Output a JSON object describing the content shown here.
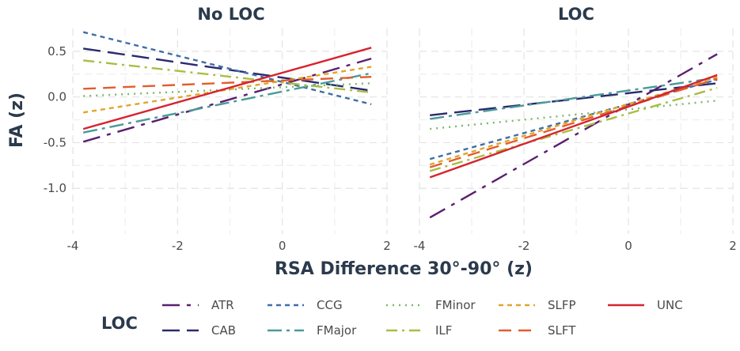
{
  "chart_data": {
    "type": "line",
    "facets": [
      "No LOC",
      "LOC"
    ],
    "xlabel": "RSA Difference 30°-90° (z)",
    "ylabel": "FA (z)",
    "xlim": [
      -4,
      2
    ],
    "ylim": [
      -1.5,
      0.75
    ],
    "xticks": [
      -4,
      -2,
      0,
      2
    ],
    "xtick_labels": [
      "-4",
      "-2",
      "0",
      "2"
    ],
    "yticks": [
      -1.0,
      -0.5,
      0.0,
      0.5
    ],
    "ytick_labels": [
      "-1.0",
      "-0.5",
      "0.0",
      "0.5"
    ],
    "legend_title": "LOC",
    "legend_position": "bottom",
    "series": [
      {
        "name": "ATR",
        "color": "#5b1f6e",
        "dash": "22 9 5 9",
        "panels": [
          {
            "x": [
              -3.8,
              1.7
            ],
            "y": [
              -0.49,
              0.42
            ]
          },
          {
            "x": [
              -3.8,
              1.7
            ],
            "y": [
              -1.32,
              0.47
            ]
          }
        ]
      },
      {
        "name": "CAB",
        "color": "#2a2a6e",
        "dash": "22 9",
        "panels": [
          {
            "x": [
              -3.8,
              1.7
            ],
            "y": [
              0.53,
              0.07
            ]
          },
          {
            "x": [
              -3.8,
              1.7
            ],
            "y": [
              -0.2,
              0.15
            ]
          }
        ]
      },
      {
        "name": "CCG",
        "color": "#3f6ea6",
        "dash": "6 5",
        "panels": [
          {
            "x": [
              -3.8,
              1.7
            ],
            "y": [
              0.71,
              -0.08
            ]
          },
          {
            "x": [
              -3.8,
              1.7
            ],
            "y": [
              -0.68,
              0.19
            ]
          }
        ]
      },
      {
        "name": "FMajor",
        "color": "#4a9a99",
        "dash": "18 6 4 6",
        "panels": [
          {
            "x": [
              -3.8,
              1.7
            ],
            "y": [
              -0.39,
              0.26
            ]
          },
          {
            "x": [
              -3.8,
              1.7
            ],
            "y": [
              -0.24,
              0.21
            ]
          }
        ]
      },
      {
        "name": "FMinor",
        "color": "#79b86a",
        "dash": "2 6",
        "panels": [
          {
            "x": [
              -3.8,
              1.7
            ],
            "y": [
              0.01,
              0.15
            ]
          },
          {
            "x": [
              -3.8,
              1.7
            ],
            "y": [
              -0.35,
              -0.04
            ]
          }
        ]
      },
      {
        "name": "ILF",
        "color": "#a7be43",
        "dash": "14 6 3 6",
        "panels": [
          {
            "x": [
              -3.8,
              1.7
            ],
            "y": [
              0.4,
              0.05
            ]
          },
          {
            "x": [
              -3.8,
              1.7
            ],
            "y": [
              -0.81,
              0.1
            ]
          }
        ]
      },
      {
        "name": "SLFP",
        "color": "#e0a62c",
        "dash": "6 5",
        "panels": [
          {
            "x": [
              -3.8,
              1.7
            ],
            "y": [
              -0.17,
              0.33
            ]
          },
          {
            "x": [
              -3.8,
              1.7
            ],
            "y": [
              -0.74,
              0.22
            ]
          }
        ]
      },
      {
        "name": "SLFT",
        "color": "#e25d2a",
        "dash": "16 9",
        "panels": [
          {
            "x": [
              -3.8,
              1.7
            ],
            "y": [
              0.09,
              0.22
            ]
          },
          {
            "x": [
              -3.8,
              1.7
            ],
            "y": [
              -0.77,
              0.2
            ]
          }
        ]
      },
      {
        "name": "UNC",
        "color": "#d6242f",
        "dash": "",
        "panels": [
          {
            "x": [
              -3.8,
              1.7
            ],
            "y": [
              -0.35,
              0.54
            ]
          },
          {
            "x": [
              -3.8,
              1.7
            ],
            "y": [
              -0.88,
              0.24
            ]
          }
        ]
      }
    ]
  }
}
